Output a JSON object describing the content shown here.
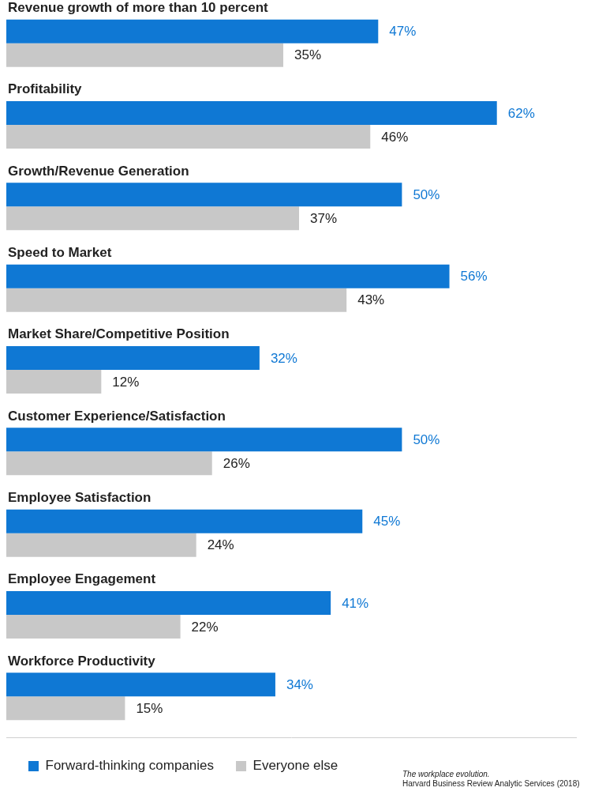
{
  "chart_data": {
    "type": "bar",
    "orientation": "horizontal",
    "categories": [
      "Revenue growth of more than 10 percent",
      "Profitability",
      "Growth/Revenue Generation",
      "Speed to Market",
      "Market Share/Competitive Position",
      "Customer Experience/Satisfaction",
      "Employee Satisfaction",
      "Employee Engagement",
      "Workforce Productivity"
    ],
    "series": [
      {
        "name": "Forward-thinking companies",
        "color": "#0f78d4",
        "values": [
          47,
          62,
          50,
          56,
          32,
          50,
          45,
          41,
          34
        ],
        "value_labels": [
          "47%",
          "62%",
          "50%",
          "56%",
          "32%",
          "50%",
          "45%",
          "41%",
          "34%"
        ]
      },
      {
        "name": "Everyone else",
        "color": "#c8c8c8",
        "values": [
          35,
          46,
          37,
          43,
          12,
          26,
          24,
          22,
          15
        ],
        "value_labels": [
          "35%",
          "46%",
          "37%",
          "43%",
          "12%",
          "26%",
          "24%",
          "22%",
          "15%"
        ]
      }
    ],
    "xlim": [
      0,
      72
    ],
    "data_labels": true,
    "tick_labels": false,
    "grid": false,
    "legend": "bottom left",
    "source": [
      "The workplace evolution.",
      "Harvard Business Review Analytic Services (2018)"
    ]
  }
}
